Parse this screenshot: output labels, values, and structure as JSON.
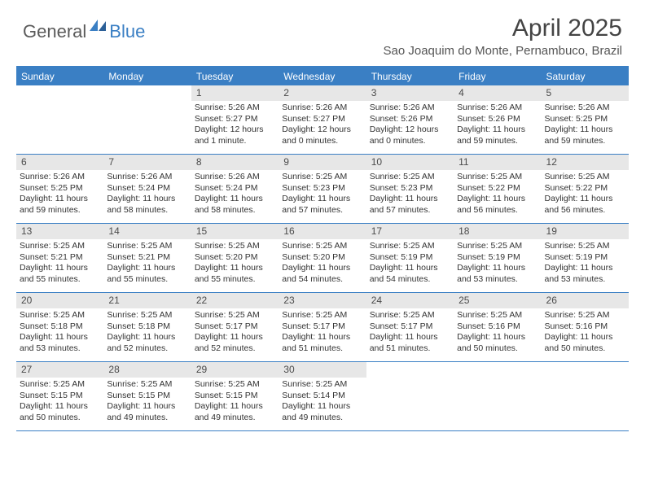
{
  "logo": {
    "part1": "General",
    "part2": "Blue"
  },
  "title": "April 2025",
  "location": "Sao Joaquim do Monte, Pernambuco, Brazil",
  "colors": {
    "accent": "#3a7fc4",
    "dow_bg": "#3a7fc4",
    "dow_text": "#ffffff",
    "daynum_bg": "#e7e7e7",
    "text": "#333333",
    "logo_gray": "#5a5a5a"
  },
  "days_of_week": [
    "Sunday",
    "Monday",
    "Tuesday",
    "Wednesday",
    "Thursday",
    "Friday",
    "Saturday"
  ],
  "weeks": [
    [
      {
        "n": "",
        "lines": []
      },
      {
        "n": "",
        "lines": []
      },
      {
        "n": "1",
        "lines": [
          "Sunrise: 5:26 AM",
          "Sunset: 5:27 PM",
          "Daylight: 12 hours and 1 minute."
        ]
      },
      {
        "n": "2",
        "lines": [
          "Sunrise: 5:26 AM",
          "Sunset: 5:27 PM",
          "Daylight: 12 hours and 0 minutes."
        ]
      },
      {
        "n": "3",
        "lines": [
          "Sunrise: 5:26 AM",
          "Sunset: 5:26 PM",
          "Daylight: 12 hours and 0 minutes."
        ]
      },
      {
        "n": "4",
        "lines": [
          "Sunrise: 5:26 AM",
          "Sunset: 5:26 PM",
          "Daylight: 11 hours and 59 minutes."
        ]
      },
      {
        "n": "5",
        "lines": [
          "Sunrise: 5:26 AM",
          "Sunset: 5:25 PM",
          "Daylight: 11 hours and 59 minutes."
        ]
      }
    ],
    [
      {
        "n": "6",
        "lines": [
          "Sunrise: 5:26 AM",
          "Sunset: 5:25 PM",
          "Daylight: 11 hours and 59 minutes."
        ]
      },
      {
        "n": "7",
        "lines": [
          "Sunrise: 5:26 AM",
          "Sunset: 5:24 PM",
          "Daylight: 11 hours and 58 minutes."
        ]
      },
      {
        "n": "8",
        "lines": [
          "Sunrise: 5:26 AM",
          "Sunset: 5:24 PM",
          "Daylight: 11 hours and 58 minutes."
        ]
      },
      {
        "n": "9",
        "lines": [
          "Sunrise: 5:25 AM",
          "Sunset: 5:23 PM",
          "Daylight: 11 hours and 57 minutes."
        ]
      },
      {
        "n": "10",
        "lines": [
          "Sunrise: 5:25 AM",
          "Sunset: 5:23 PM",
          "Daylight: 11 hours and 57 minutes."
        ]
      },
      {
        "n": "11",
        "lines": [
          "Sunrise: 5:25 AM",
          "Sunset: 5:22 PM",
          "Daylight: 11 hours and 56 minutes."
        ]
      },
      {
        "n": "12",
        "lines": [
          "Sunrise: 5:25 AM",
          "Sunset: 5:22 PM",
          "Daylight: 11 hours and 56 minutes."
        ]
      }
    ],
    [
      {
        "n": "13",
        "lines": [
          "Sunrise: 5:25 AM",
          "Sunset: 5:21 PM",
          "Daylight: 11 hours and 55 minutes."
        ]
      },
      {
        "n": "14",
        "lines": [
          "Sunrise: 5:25 AM",
          "Sunset: 5:21 PM",
          "Daylight: 11 hours and 55 minutes."
        ]
      },
      {
        "n": "15",
        "lines": [
          "Sunrise: 5:25 AM",
          "Sunset: 5:20 PM",
          "Daylight: 11 hours and 55 minutes."
        ]
      },
      {
        "n": "16",
        "lines": [
          "Sunrise: 5:25 AM",
          "Sunset: 5:20 PM",
          "Daylight: 11 hours and 54 minutes."
        ]
      },
      {
        "n": "17",
        "lines": [
          "Sunrise: 5:25 AM",
          "Sunset: 5:19 PM",
          "Daylight: 11 hours and 54 minutes."
        ]
      },
      {
        "n": "18",
        "lines": [
          "Sunrise: 5:25 AM",
          "Sunset: 5:19 PM",
          "Daylight: 11 hours and 53 minutes."
        ]
      },
      {
        "n": "19",
        "lines": [
          "Sunrise: 5:25 AM",
          "Sunset: 5:19 PM",
          "Daylight: 11 hours and 53 minutes."
        ]
      }
    ],
    [
      {
        "n": "20",
        "lines": [
          "Sunrise: 5:25 AM",
          "Sunset: 5:18 PM",
          "Daylight: 11 hours and 53 minutes."
        ]
      },
      {
        "n": "21",
        "lines": [
          "Sunrise: 5:25 AM",
          "Sunset: 5:18 PM",
          "Daylight: 11 hours and 52 minutes."
        ]
      },
      {
        "n": "22",
        "lines": [
          "Sunrise: 5:25 AM",
          "Sunset: 5:17 PM",
          "Daylight: 11 hours and 52 minutes."
        ]
      },
      {
        "n": "23",
        "lines": [
          "Sunrise: 5:25 AM",
          "Sunset: 5:17 PM",
          "Daylight: 11 hours and 51 minutes."
        ]
      },
      {
        "n": "24",
        "lines": [
          "Sunrise: 5:25 AM",
          "Sunset: 5:17 PM",
          "Daylight: 11 hours and 51 minutes."
        ]
      },
      {
        "n": "25",
        "lines": [
          "Sunrise: 5:25 AM",
          "Sunset: 5:16 PM",
          "Daylight: 11 hours and 50 minutes."
        ]
      },
      {
        "n": "26",
        "lines": [
          "Sunrise: 5:25 AM",
          "Sunset: 5:16 PM",
          "Daylight: 11 hours and 50 minutes."
        ]
      }
    ],
    [
      {
        "n": "27",
        "lines": [
          "Sunrise: 5:25 AM",
          "Sunset: 5:15 PM",
          "Daylight: 11 hours and 50 minutes."
        ]
      },
      {
        "n": "28",
        "lines": [
          "Sunrise: 5:25 AM",
          "Sunset: 5:15 PM",
          "Daylight: 11 hours and 49 minutes."
        ]
      },
      {
        "n": "29",
        "lines": [
          "Sunrise: 5:25 AM",
          "Sunset: 5:15 PM",
          "Daylight: 11 hours and 49 minutes."
        ]
      },
      {
        "n": "30",
        "lines": [
          "Sunrise: 5:25 AM",
          "Sunset: 5:14 PM",
          "Daylight: 11 hours and 49 minutes."
        ]
      },
      {
        "n": "",
        "lines": []
      },
      {
        "n": "",
        "lines": []
      },
      {
        "n": "",
        "lines": []
      }
    ]
  ]
}
